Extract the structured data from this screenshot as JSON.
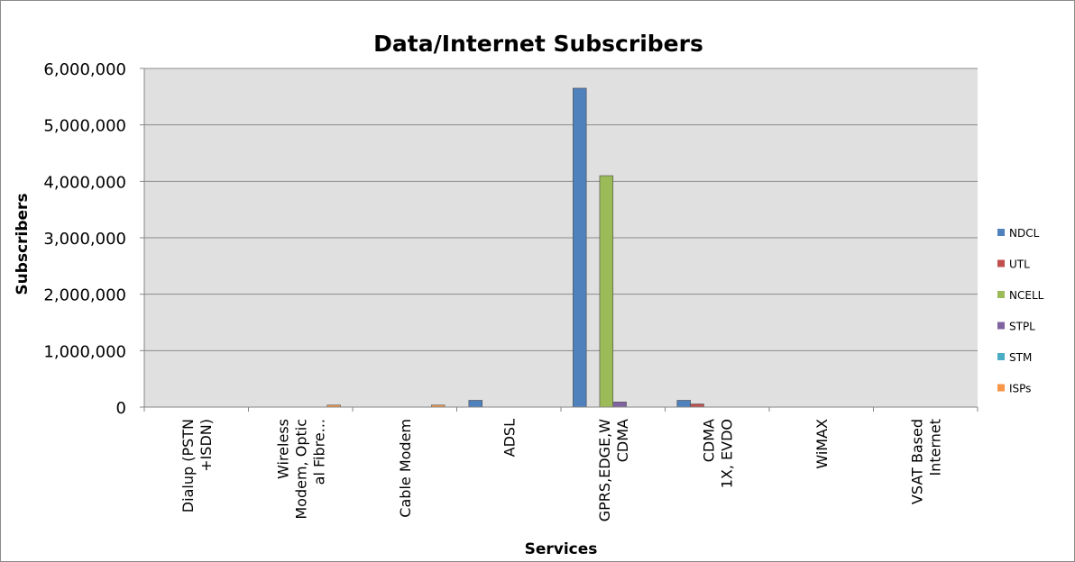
{
  "chart_data": {
    "type": "bar",
    "title": "Data/Internet Subscribers",
    "xlabel": "Services",
    "ylabel": "Subscribers",
    "ylim": [
      0,
      6000000
    ],
    "yticks": [
      "0",
      "1,000,000",
      "2,000,000",
      "3,000,000",
      "4,000,000",
      "5,000,000",
      "6,000,000"
    ],
    "categories": [
      [
        "Dialup (PSTN",
        "+ISDN)"
      ],
      [
        "Wireless",
        "Modem, Optic",
        "al Fibre..."
      ],
      [
        "Cable Modem"
      ],
      [
        "ADSL"
      ],
      [
        "GPRS,EDGE,W",
        "CDMA"
      ],
      [
        "CDMA",
        "1X, EVDO"
      ],
      [
        "WiMAX"
      ],
      [
        "VSAT Based",
        "Internet"
      ]
    ],
    "series": [
      {
        "name": "NDCL",
        "color": "#4f81bd",
        "values": [
          0,
          0,
          0,
          120000,
          5650000,
          120000,
          0,
          0
        ]
      },
      {
        "name": "UTL",
        "color": "#c0504d",
        "values": [
          0,
          0,
          0,
          0,
          0,
          55000,
          0,
          0
        ]
      },
      {
        "name": "NCELL",
        "color": "#9bbb59",
        "values": [
          0,
          0,
          0,
          0,
          4100000,
          0,
          0,
          0
        ]
      },
      {
        "name": "STPL",
        "color": "#8064a2",
        "values": [
          0,
          0,
          0,
          0,
          90000,
          0,
          0,
          0
        ]
      },
      {
        "name": "STM",
        "color": "#4bacc6",
        "values": [
          0,
          0,
          0,
          0,
          0,
          0,
          0,
          0
        ]
      },
      {
        "name": "ISPs",
        "color": "#f79646",
        "values": [
          0,
          35000,
          35000,
          0,
          0,
          0,
          0,
          0
        ]
      }
    ],
    "grid": true,
    "legend": "right"
  }
}
